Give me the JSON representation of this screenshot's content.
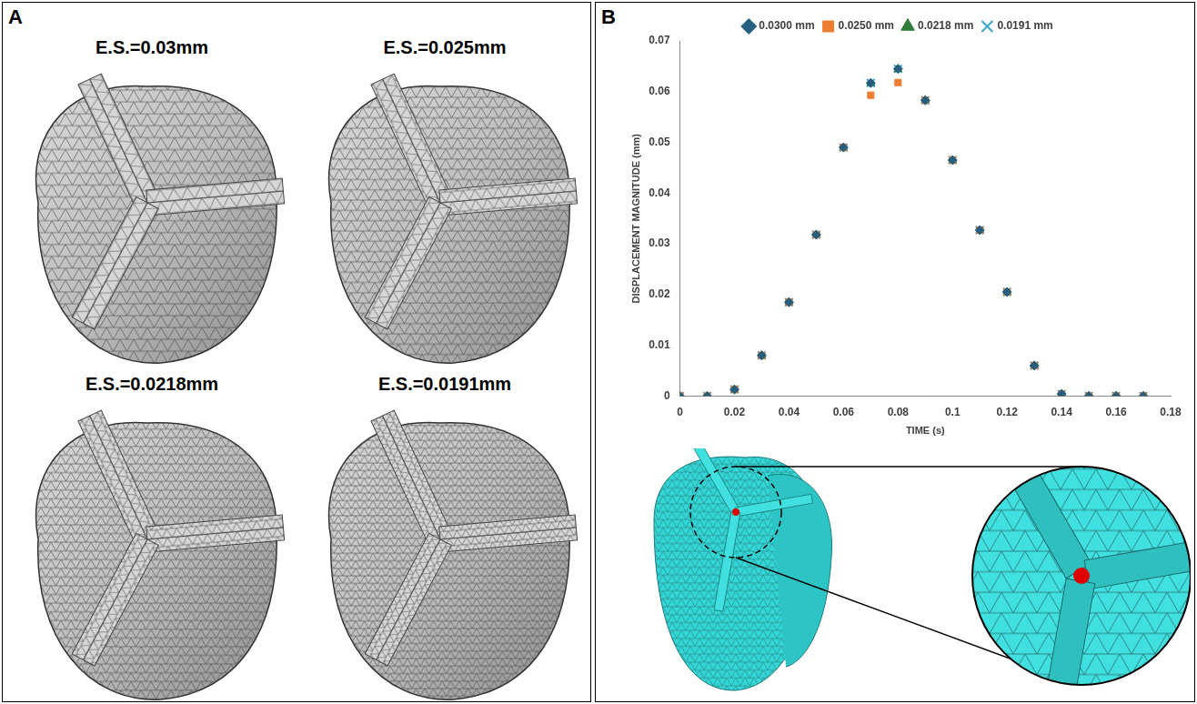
{
  "panels": [
    {
      "label": "A",
      "titles": [
        "E.S.=0.03mm",
        "E.S.=0.025mm",
        "E.S.=0.0218mm",
        "E.S.=0.0191mm"
      ]
    },
    {
      "label": "B"
    }
  ],
  "chart_data": {
    "type": "scatter",
    "x_label": "TIME (s)",
    "y_label": "DISPLACEMENT MAGNITUDE (mm)",
    "x": [
      0,
      0.01,
      0.02,
      0.03,
      0.04,
      0.05,
      0.06,
      0.07,
      0.08,
      0.09,
      0.1,
      0.11,
      0.12,
      0.13,
      0.14,
      0.15,
      0.16,
      0.17
    ],
    "series": [
      {
        "name": "0.0300 mm",
        "color": "#255e7e",
        "marker": "diamond",
        "values": [
          0,
          0,
          0.0013,
          0.008,
          0.0185,
          0.0318,
          0.049,
          0.0617,
          0.0645,
          0.0583,
          0.0465,
          0.0327,
          0.0205,
          0.006,
          0.0004,
          0,
          0,
          0
        ]
      },
      {
        "name": "0.0250 mm",
        "color": "#ed7d31",
        "marker": "square",
        "values": [
          0,
          0,
          0.0013,
          0.008,
          0.0185,
          0.0318,
          0.049,
          0.0593,
          0.0618,
          0.0583,
          0.0465,
          0.0327,
          0.0205,
          0.006,
          0.0004,
          0,
          0,
          0
        ]
      },
      {
        "name": "0.0218 mm",
        "color": "#2e7d3a",
        "marker": "triangle",
        "values": [
          0,
          0,
          0.0013,
          0.008,
          0.0185,
          0.0318,
          0.049,
          0.0617,
          0.0644,
          0.0583,
          0.0465,
          0.0327,
          0.0205,
          0.006,
          0.0004,
          0,
          0,
          0
        ]
      },
      {
        "name": "0.0191 mm",
        "color": "#3aa6c9",
        "marker": "x",
        "values": [
          0,
          0,
          0.0013,
          0.008,
          0.0185,
          0.0318,
          0.049,
          0.0617,
          0.0645,
          0.0583,
          0.0465,
          0.0327,
          0.0205,
          0.006,
          0.0004,
          0,
          0,
          0
        ]
      }
    ],
    "xlim": [
      0,
      0.18
    ],
    "xticks": [
      0,
      0.02,
      0.04,
      0.06,
      0.08,
      0.1,
      0.12,
      0.14,
      0.16,
      0.18
    ],
    "ylim": [
      0,
      0.07
    ],
    "yticks": [
      0,
      0.01,
      0.02,
      0.03,
      0.04,
      0.05,
      0.06,
      0.07
    ],
    "grid": false,
    "legend": "top"
  }
}
